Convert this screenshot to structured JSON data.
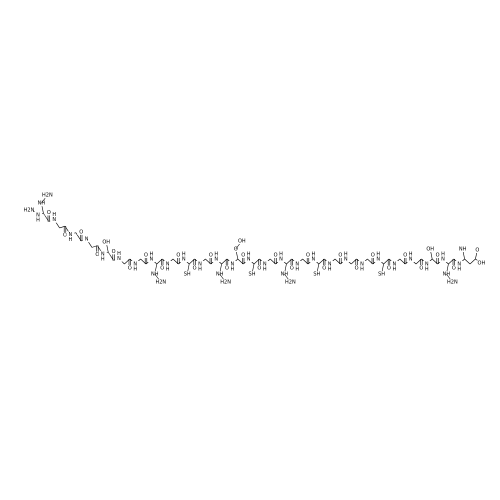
{
  "molecule": {
    "n_terminus": "H2N",
    "c_terminus": [
      "O",
      "OH"
    ],
    "residues": [
      {
        "amide": "N",
        "h": "H",
        "carbonyl": "O",
        "side": [
          "NH",
          "H2N"
        ]
      },
      {
        "amide": "N",
        "h": "H",
        "carbonyl": "O"
      },
      {
        "amide": "N",
        "h": "H",
        "carbonyl": "O"
      },
      {
        "amide": "N",
        "carbonyl": "O"
      },
      {
        "amide": "N",
        "h": "H",
        "carbonyl": "O",
        "side": [
          "OH"
        ]
      },
      {
        "amide": "N",
        "h": "H",
        "carbonyl": "O"
      },
      {
        "amide": "N",
        "h": "H",
        "carbonyl": "O"
      },
      {
        "amide": "N",
        "h": "H",
        "carbonyl": "O",
        "side": [
          "NH",
          "H2N"
        ]
      },
      {
        "amide": "N",
        "h": "H",
        "carbonyl": "O"
      },
      {
        "amide": "N",
        "h": "H",
        "carbonyl": "O",
        "side": [
          "SH"
        ]
      },
      {
        "amide": "N",
        "h": "H",
        "carbonyl": "O"
      },
      {
        "amide": "N",
        "h": "H",
        "carbonyl": "O",
        "side": [
          "NH",
          "H2N"
        ]
      },
      {
        "amide": "N",
        "h": "H",
        "carbonyl": "O",
        "side": [
          "O",
          "OH"
        ]
      },
      {
        "amide": "N",
        "h": "H",
        "carbonyl": "O",
        "side": [
          "SH"
        ]
      },
      {
        "amide": "N",
        "h": "H",
        "carbonyl": "O"
      },
      {
        "amide": "N",
        "h": "H",
        "carbonyl": "O",
        "side": [
          "NH",
          "H2N"
        ]
      },
      {
        "amide": "N",
        "h": "H",
        "carbonyl": "O"
      },
      {
        "amide": "N",
        "h": "H",
        "carbonyl": "O",
        "side": [
          "SH"
        ]
      },
      {
        "amide": "N",
        "h": "H",
        "carbonyl": "O"
      },
      {
        "amide": "N",
        "h": "H",
        "carbonyl": "O"
      },
      {
        "amide": "N",
        "h": "H",
        "carbonyl": "O"
      },
      {
        "amide": "N",
        "h": "H",
        "carbonyl": "O",
        "side": [
          "SH"
        ]
      },
      {
        "amide": "N",
        "h": "H",
        "carbonyl": "O"
      },
      {
        "amide": "N",
        "h": "H",
        "carbonyl": "O"
      },
      {
        "amide": "N",
        "h": "H",
        "carbonyl": "O",
        "side": [
          "OH"
        ]
      },
      {
        "amide": "N",
        "h": "H",
        "carbonyl": "O",
        "side": [
          "NH",
          "H2N"
        ]
      },
      {
        "amide": "N",
        "h": "H",
        "side": [
          "NH"
        ]
      }
    ]
  }
}
